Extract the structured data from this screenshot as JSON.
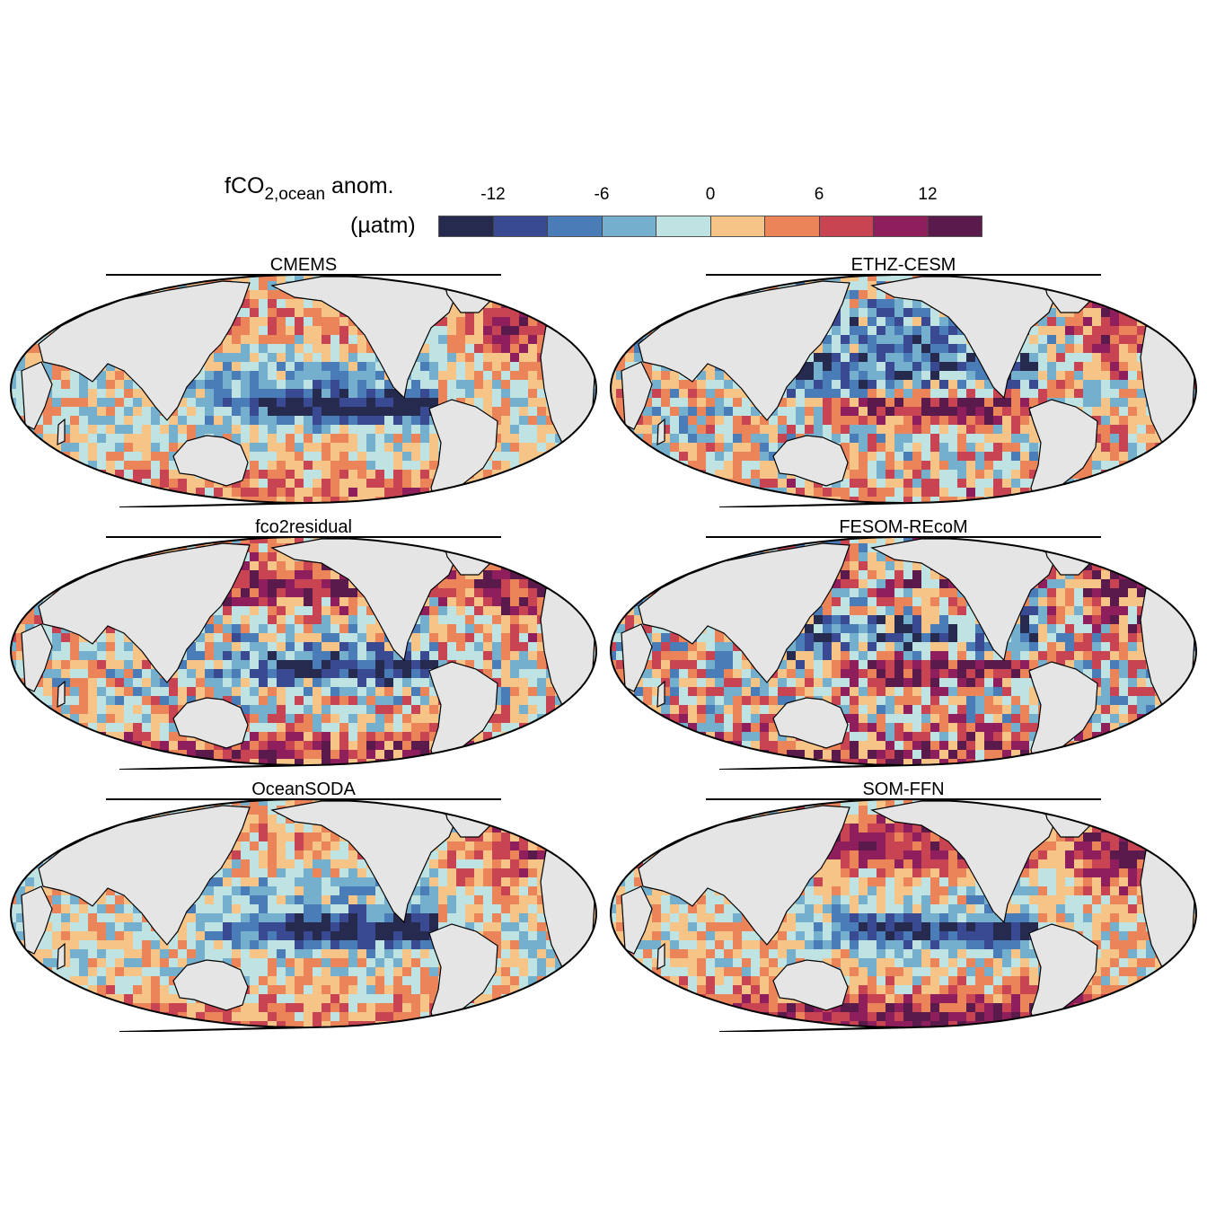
{
  "legend": {
    "title_main": "fCO",
    "title_sub": "2,ocean",
    "title_tail": " anom.",
    "unit": "(µatm)",
    "ticks": [
      "-12",
      "-6",
      "0",
      "6",
      "12"
    ],
    "colors": [
      "#262a4f",
      "#3a4a92",
      "#4a7cb8",
      "#74b0ce",
      "#bfe3e3",
      "#f7c488",
      "#ec8459",
      "#c84452",
      "#8e1f5c",
      "#5a1a4c"
    ],
    "range": [
      -15,
      15
    ]
  },
  "panels": [
    {
      "title": "CMEMS"
    },
    {
      "title": "ETHZ-CESM"
    },
    {
      "title": "fco2residual"
    },
    {
      "title": "FESOM-REcoM"
    },
    {
      "title": "OceanSODA"
    },
    {
      "title": "SOM-FFN"
    }
  ]
}
